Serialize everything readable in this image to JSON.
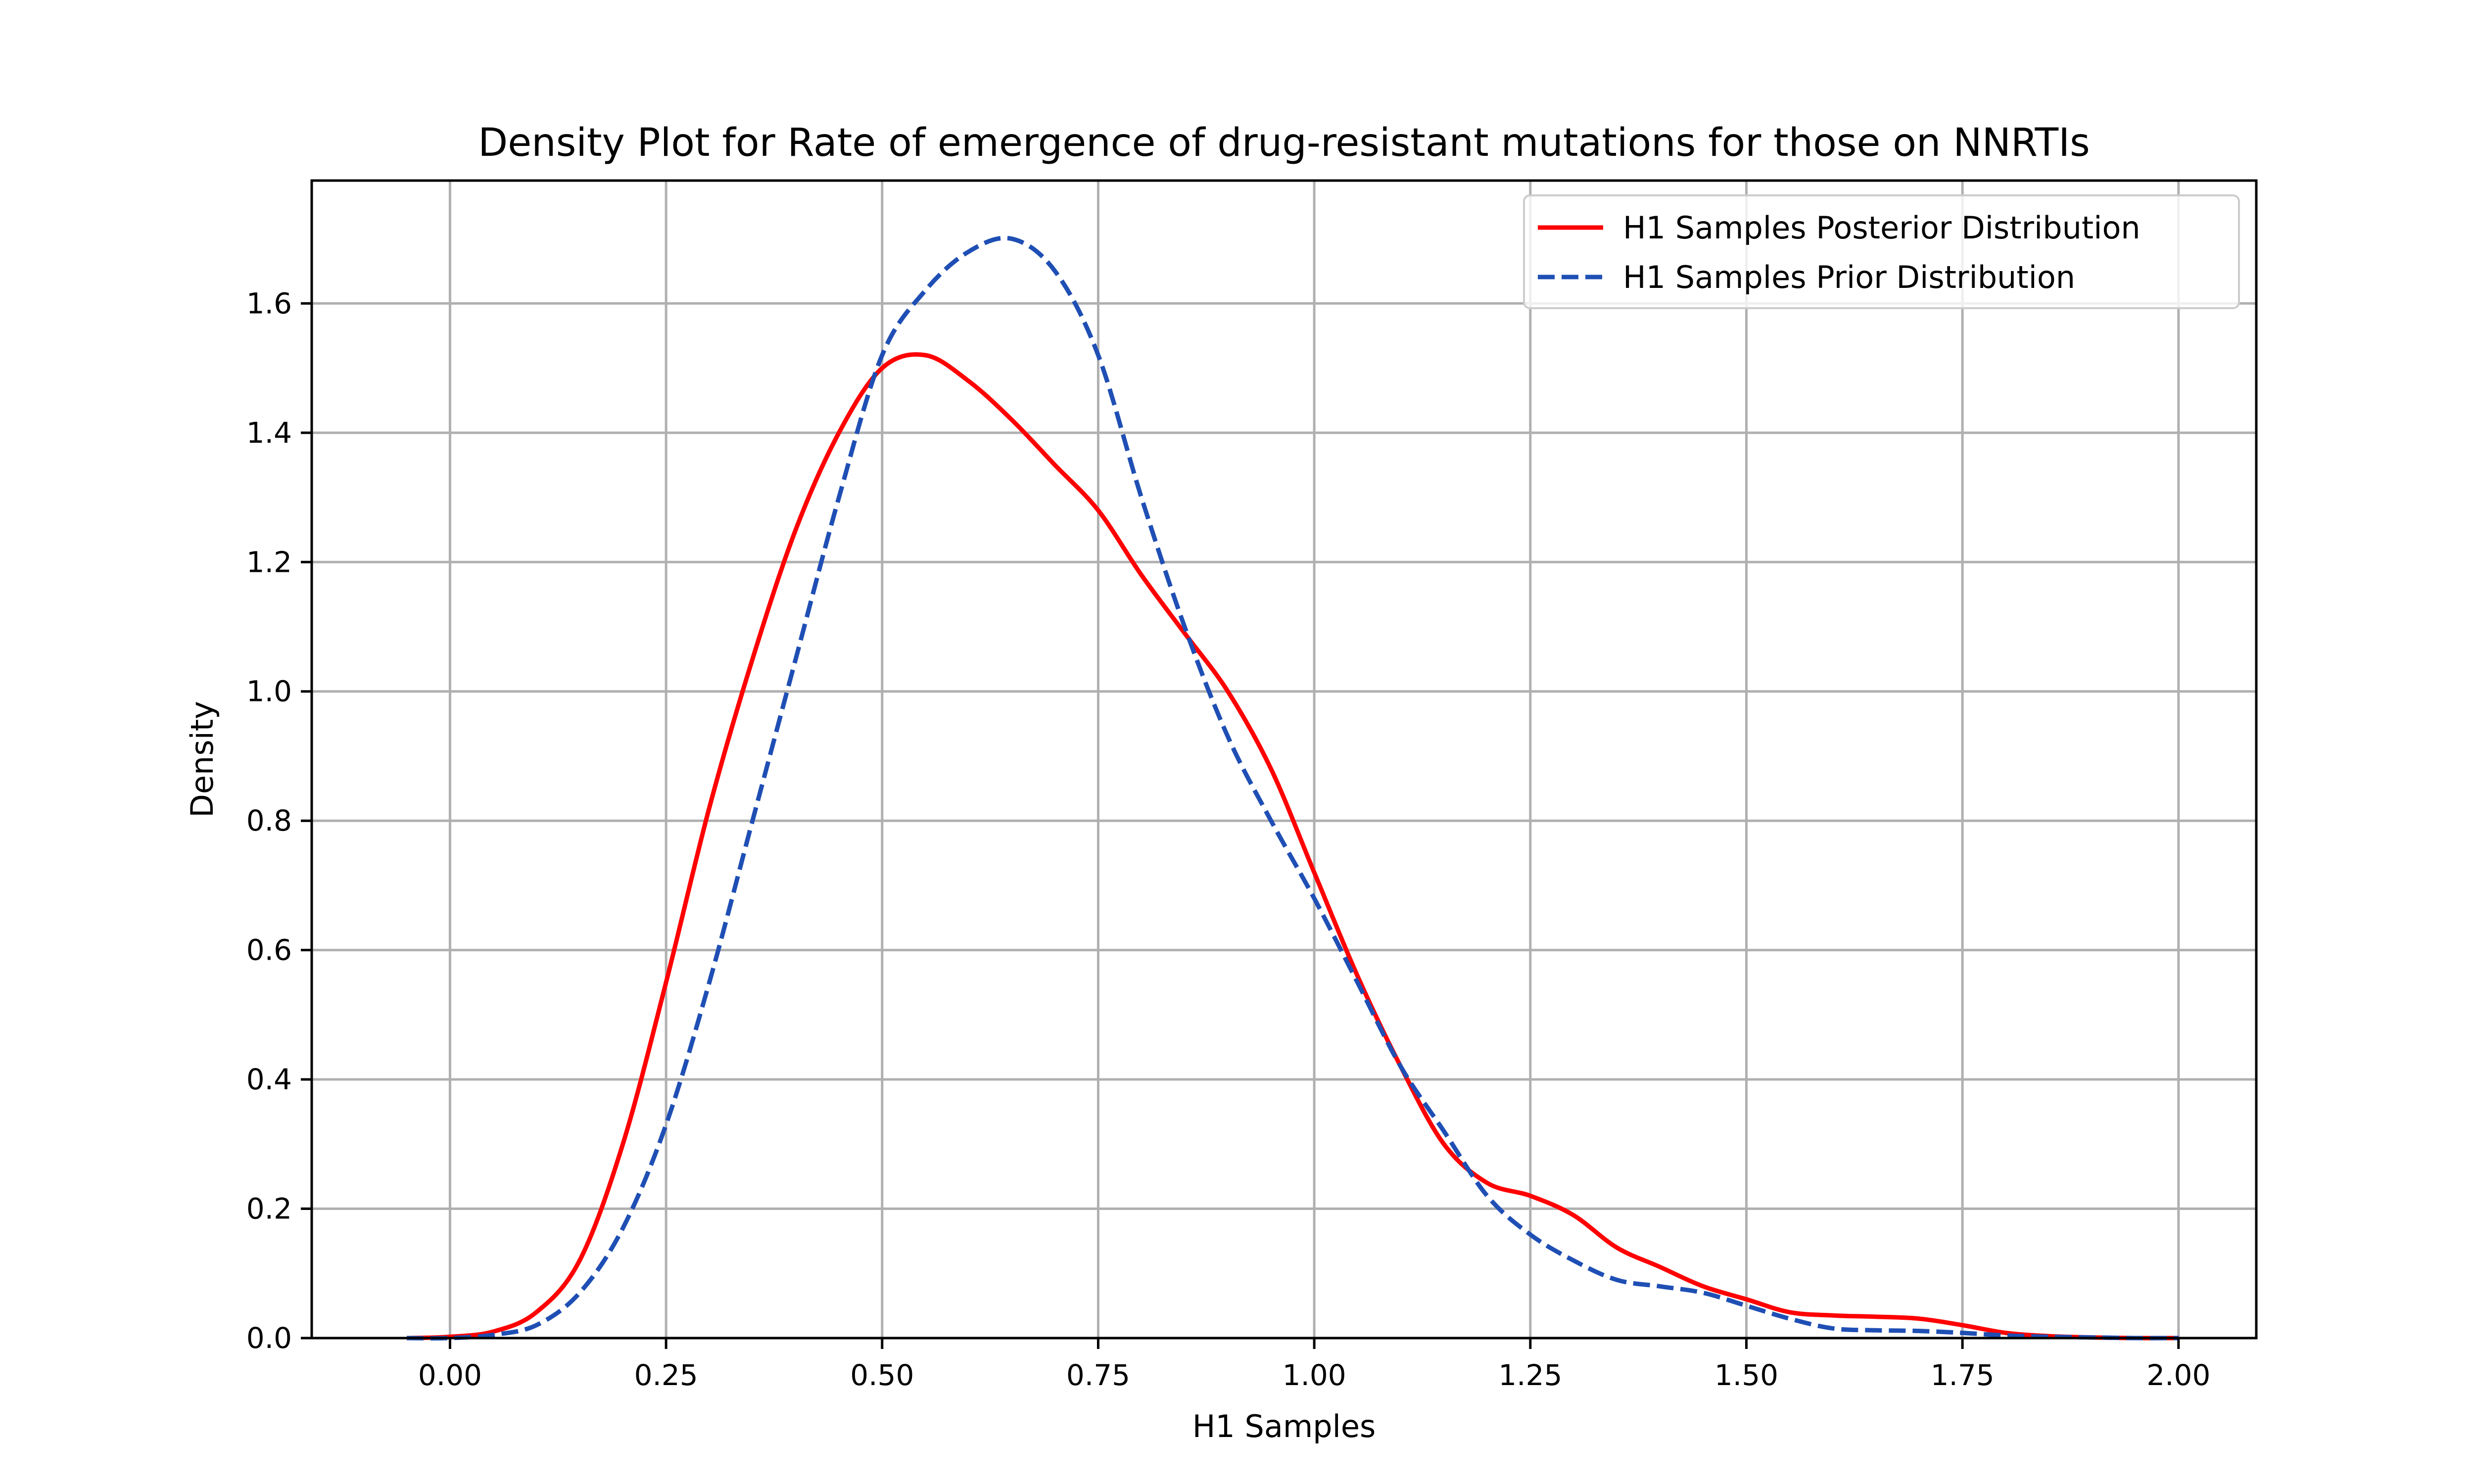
{
  "chart_data": {
    "type": "line",
    "title": "Density Plot for Rate of emergence of drug-resistant mutations for those on NNRTIs",
    "xlabel": "H1 Samples",
    "ylabel": "Density",
    "xlim": [
      -0.16,
      2.09
    ],
    "ylim": [
      0.0,
      1.79
    ],
    "xticks": [
      0.0,
      0.25,
      0.5,
      0.75,
      1.0,
      1.25,
      1.5,
      1.75,
      2.0
    ],
    "xtick_labels": [
      "0.00",
      "0.25",
      "0.50",
      "0.75",
      "1.00",
      "1.25",
      "1.50",
      "1.75",
      "2.00"
    ],
    "yticks": [
      0.0,
      0.2,
      0.4,
      0.6,
      0.8,
      1.0,
      1.2,
      1.4,
      1.6
    ],
    "ytick_labels": [
      "0.0",
      "0.2",
      "0.4",
      "0.6",
      "0.8",
      "1.0",
      "1.2",
      "1.4",
      "1.6"
    ],
    "grid": true,
    "legend_position": "top-right",
    "series": [
      {
        "name": "H1 Samples Posterior Distribution",
        "color": "#ff0000",
        "dash": "solid",
        "x": [
          -0.05,
          0.0,
          0.05,
          0.1,
          0.15,
          0.2,
          0.25,
          0.3,
          0.35,
          0.4,
          0.45,
          0.5,
          0.55,
          0.6,
          0.65,
          0.7,
          0.75,
          0.8,
          0.85,
          0.9,
          0.95,
          1.0,
          1.05,
          1.1,
          1.15,
          1.2,
          1.25,
          1.3,
          1.35,
          1.4,
          1.45,
          1.5,
          1.55,
          1.6,
          1.65,
          1.7,
          1.75,
          1.8,
          1.85,
          1.9,
          1.95,
          2.0
        ],
        "y": [
          0.0,
          0.002,
          0.01,
          0.04,
          0.12,
          0.3,
          0.55,
          0.82,
          1.05,
          1.25,
          1.4,
          1.5,
          1.52,
          1.48,
          1.42,
          1.35,
          1.28,
          1.18,
          1.09,
          1.0,
          0.88,
          0.72,
          0.56,
          0.42,
          0.3,
          0.24,
          0.22,
          0.19,
          0.14,
          0.11,
          0.08,
          0.06,
          0.04,
          0.035,
          0.033,
          0.03,
          0.02,
          0.008,
          0.003,
          0.001,
          0.0,
          0.0
        ]
      },
      {
        "name": "H1 Samples Prior Distribution",
        "color": "#1f4fb4",
        "dash": "dashed",
        "x": [
          -0.05,
          0.0,
          0.05,
          0.1,
          0.15,
          0.2,
          0.25,
          0.3,
          0.35,
          0.4,
          0.45,
          0.5,
          0.55,
          0.6,
          0.65,
          0.7,
          0.75,
          0.8,
          0.85,
          0.9,
          0.95,
          1.0,
          1.05,
          1.1,
          1.15,
          1.2,
          1.25,
          1.3,
          1.35,
          1.4,
          1.45,
          1.5,
          1.55,
          1.6,
          1.65,
          1.7,
          1.75,
          1.8,
          1.85,
          1.9,
          1.95,
          2.0
        ],
        "y": [
          0.0,
          0.0,
          0.005,
          0.02,
          0.07,
          0.17,
          0.33,
          0.55,
          0.8,
          1.05,
          1.3,
          1.52,
          1.62,
          1.68,
          1.7,
          1.65,
          1.52,
          1.3,
          1.1,
          0.93,
          0.8,
          0.68,
          0.55,
          0.42,
          0.32,
          0.22,
          0.16,
          0.12,
          0.09,
          0.08,
          0.07,
          0.05,
          0.03,
          0.015,
          0.012,
          0.011,
          0.008,
          0.004,
          0.002,
          0.001,
          0.0,
          0.0
        ]
      }
    ]
  }
}
